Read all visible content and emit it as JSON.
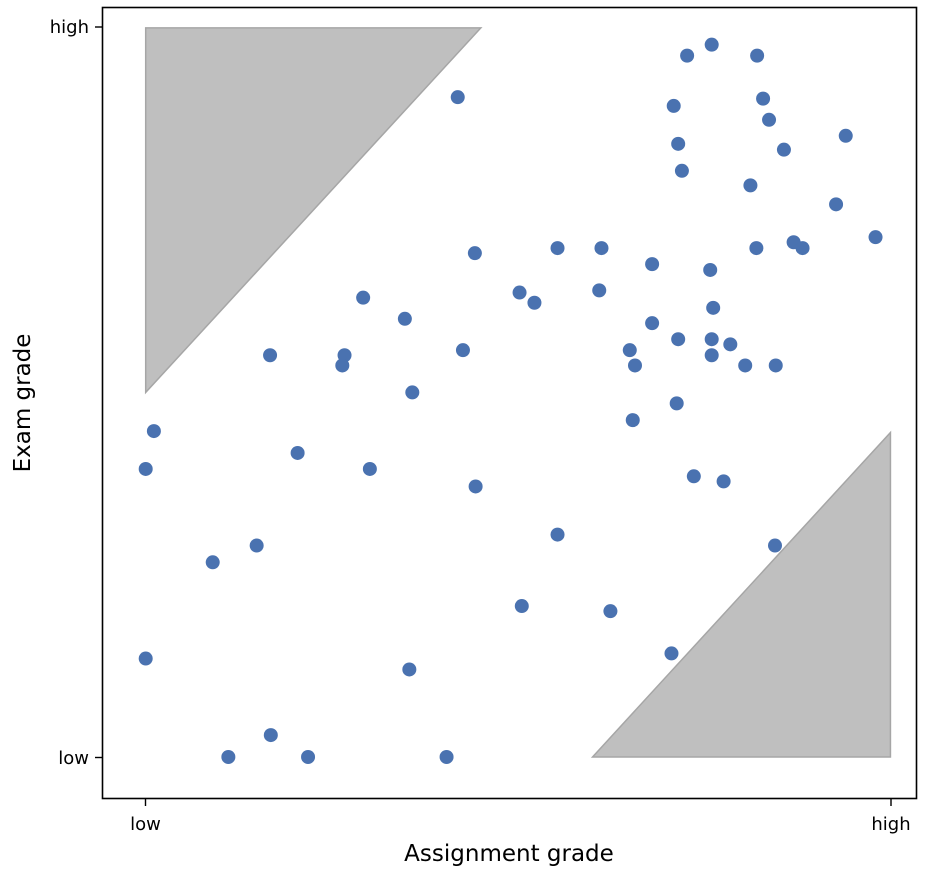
{
  "chart_data": {
    "type": "scatter",
    "xlabel": "Assignment grade",
    "ylabel": "Exam grade",
    "xlim": [
      -0.058,
      1.035
    ],
    "ylim": [
      -0.057,
      1.028
    ],
    "x_ticks": [
      {
        "value": 0,
        "label": "low"
      },
      {
        "value": 1,
        "label": "high"
      }
    ],
    "y_ticks": [
      {
        "value": 0,
        "label": "low"
      },
      {
        "value": 1,
        "label": "high"
      }
    ],
    "grid": false,
    "colors": {
      "points": "#4a72b0",
      "regions": "#bfbfbf",
      "region_edge": "#a6a6a6",
      "frame": "#000000"
    },
    "shaded_regions": [
      {
        "name": "exam-much-higher",
        "vertices": [
          [
            0,
            1
          ],
          [
            0.45,
            1
          ],
          [
            0,
            0.5
          ]
        ]
      },
      {
        "name": "assignment-much-higher",
        "vertices": [
          [
            0.6,
            0
          ],
          [
            1,
            0
          ],
          [
            1,
            0.445
          ]
        ]
      }
    ],
    "points": [
      [
        0.76,
        0.977
      ],
      [
        0.727,
        0.962
      ],
      [
        0.821,
        0.962
      ],
      [
        0.419,
        0.905
      ],
      [
        0.709,
        0.893
      ],
      [
        0.829,
        0.903
      ],
      [
        0.837,
        0.874
      ],
      [
        0.94,
        0.852
      ],
      [
        0.715,
        0.841
      ],
      [
        0.857,
        0.833
      ],
      [
        0.72,
        0.804
      ],
      [
        0.812,
        0.784
      ],
      [
        0.927,
        0.758
      ],
      [
        0.98,
        0.713
      ],
      [
        0.87,
        0.706
      ],
      [
        0.882,
        0.698
      ],
      [
        0.553,
        0.698
      ],
      [
        0.612,
        0.698
      ],
      [
        0.442,
        0.691
      ],
      [
        0.82,
        0.698
      ],
      [
        0.68,
        0.676
      ],
      [
        0.758,
        0.668
      ],
      [
        0.609,
        0.64
      ],
      [
        0.502,
        0.637
      ],
      [
        0.522,
        0.623
      ],
      [
        0.292,
        0.63
      ],
      [
        0.348,
        0.601
      ],
      [
        0.762,
        0.616
      ],
      [
        0.68,
        0.595
      ],
      [
        0.715,
        0.573
      ],
      [
        0.76,
        0.573
      ],
      [
        0.785,
        0.566
      ],
      [
        0.65,
        0.558
      ],
      [
        0.426,
        0.558
      ],
      [
        0.167,
        0.551
      ],
      [
        0.267,
        0.551
      ],
      [
        0.264,
        0.537
      ],
      [
        0.657,
        0.537
      ],
      [
        0.76,
        0.551
      ],
      [
        0.805,
        0.537
      ],
      [
        0.846,
        0.537
      ],
      [
        0.358,
        0.5
      ],
      [
        0.713,
        0.485
      ],
      [
        0.654,
        0.462
      ],
      [
        0.011,
        0.447
      ],
      [
        0.204,
        0.417
      ],
      [
        0,
        0.395
      ],
      [
        0.301,
        0.395
      ],
      [
        0.443,
        0.371
      ],
      [
        0.736,
        0.385
      ],
      [
        0.776,
        0.378
      ],
      [
        0.553,
        0.305
      ],
      [
        0.09,
        0.267
      ],
      [
        0.149,
        0.29
      ],
      [
        0.845,
        0.29
      ],
      [
        0.505,
        0.207
      ],
      [
        0.624,
        0.2
      ],
      [
        0.706,
        0.142
      ],
      [
        0,
        0.135
      ],
      [
        0.354,
        0.12
      ],
      [
        0.168,
        0.03
      ],
      [
        0.111,
        0
      ],
      [
        0.218,
        0
      ],
      [
        0.404,
        0
      ]
    ]
  }
}
